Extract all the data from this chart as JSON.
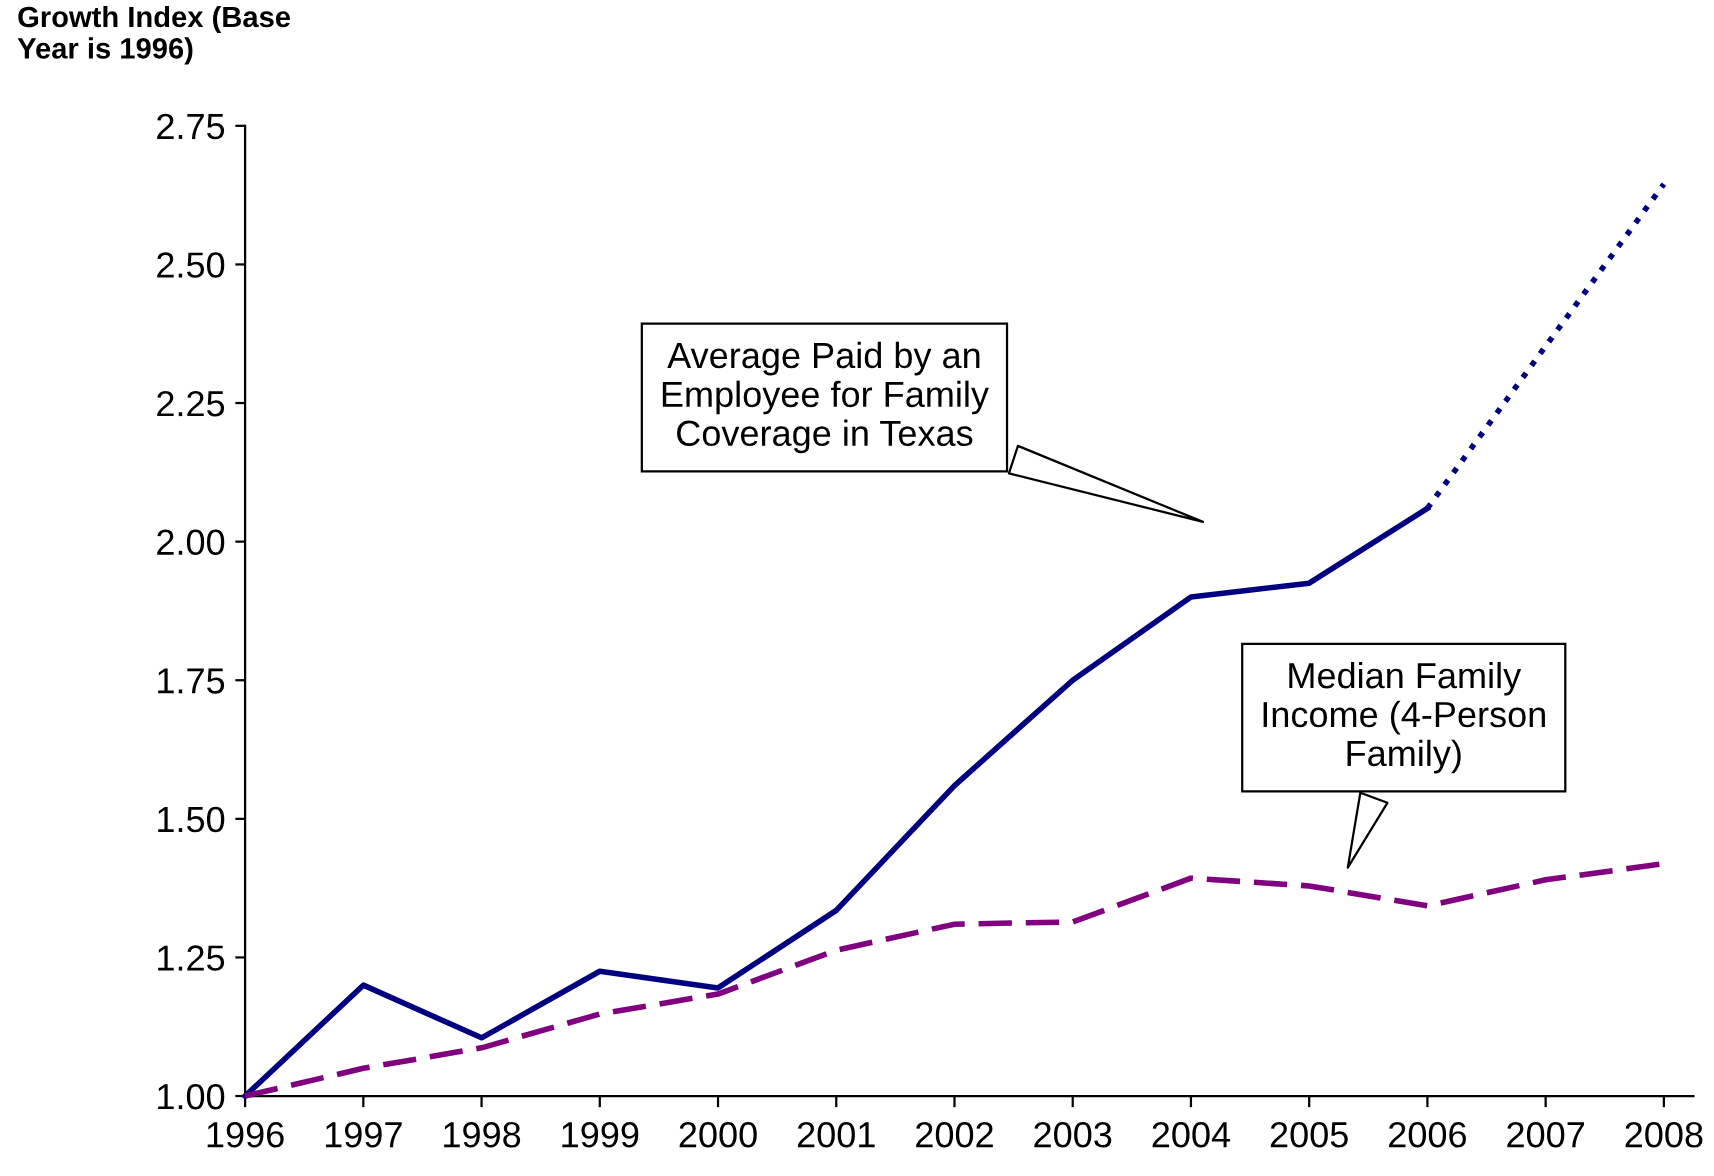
{
  "chart_data": {
    "type": "line",
    "ylabel": "Growth Index (Base\nYear is 1996)",
    "x": [
      1996,
      1997,
      1998,
      1999,
      2000,
      2001,
      2002,
      2003,
      2004,
      2005,
      2006,
      2007,
      2008
    ],
    "xlim": [
      1996,
      2008.25
    ],
    "xticks": [
      1996,
      1997,
      1998,
      1999,
      2000,
      2001,
      2002,
      2003,
      2004,
      2005,
      2006,
      2007,
      2008
    ],
    "ylim": [
      1.0,
      2.75
    ],
    "yticks": [
      {
        "value": 1.0,
        "label": "1.00"
      },
      {
        "value": 1.25,
        "label": "1.25"
      },
      {
        "value": 1.5,
        "label": "1.50"
      },
      {
        "value": 1.75,
        "label": "1.75"
      },
      {
        "value": 2.0,
        "label": "2.00"
      },
      {
        "value": 2.25,
        "label": "2.25"
      },
      {
        "value": 2.5,
        "label": "2.50"
      },
      {
        "value": 2.75,
        "label": "2.75"
      }
    ],
    "grid": false,
    "legend": false,
    "marker": "none",
    "series": [
      {
        "color": "#000080",
        "line_style": "solid",
        "x": [
          1996,
          1997,
          1998,
          1999,
          2000,
          2001,
          2002,
          2003,
          2004,
          2005,
          2006
        ],
        "values": [
          1.0,
          1.2,
          1.105,
          1.225,
          1.195,
          1.335,
          1.56,
          1.75,
          1.9,
          1.925,
          2.06
        ]
      },
      {
        "color": "#000080",
        "line_style": "dotted",
        "x": [
          2006,
          2008
        ],
        "values": [
          2.06,
          2.645
        ]
      },
      {
        "color": "#800080",
        "line_style": "dashed",
        "values": [
          1.0,
          1.05,
          1.087,
          1.148,
          1.184,
          1.263,
          1.31,
          1.314,
          1.393,
          1.379,
          1.343,
          1.39,
          1.419
        ]
      }
    ],
    "annotations": [
      "Average Paid by an\nEmployee for Family\nCoverage in Texas",
      "Median Family\nIncome (4-Person\nFamily)"
    ]
  }
}
